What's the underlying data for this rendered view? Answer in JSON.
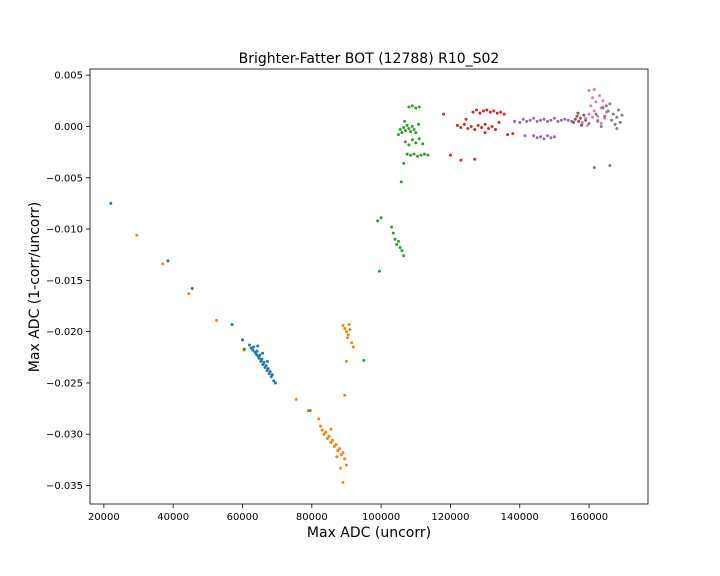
{
  "chart_data": {
    "type": "scatter",
    "title": "Brighter-Fatter BOT (12788) R10_S02",
    "xlabel": "Max ADC (uncorr)",
    "ylabel": "Max ADC (1-corr/uncorr)",
    "xlim": [
      16000,
      177000
    ],
    "ylim": [
      -0.0368,
      0.0056
    ],
    "xticks": [
      20000,
      40000,
      60000,
      80000,
      100000,
      120000,
      140000,
      160000
    ],
    "xtick_labels": [
      "20000",
      "40000",
      "60000",
      "80000",
      "100000",
      "120000",
      "140000",
      "160000"
    ],
    "yticks": [
      0.005,
      0.0,
      -0.005,
      -0.01,
      -0.015,
      -0.02,
      -0.025,
      -0.03,
      -0.035
    ],
    "ytick_labels": [
      "0.005",
      "0.000",
      "−0.005",
      "−0.010",
      "−0.015",
      "−0.020",
      "−0.025",
      "−0.030",
      "−0.035"
    ],
    "grid": false,
    "legend": "none",
    "series": [
      {
        "color": "#1f77b4",
        "points": [
          [
            22000,
            -0.0075
          ],
          [
            38500,
            -0.0131
          ],
          [
            45500,
            -0.0158
          ],
          [
            57000,
            -0.0193
          ],
          [
            60000,
            -0.0208
          ],
          [
            62000,
            -0.0213
          ],
          [
            62500,
            -0.0216
          ],
          [
            63000,
            -0.0218
          ],
          [
            63200,
            -0.0215
          ],
          [
            63600,
            -0.022
          ],
          [
            64000,
            -0.0222
          ],
          [
            64200,
            -0.0219
          ],
          [
            64500,
            -0.0224
          ],
          [
            64800,
            -0.0226
          ],
          [
            65000,
            -0.0223
          ],
          [
            65300,
            -0.0229
          ],
          [
            65600,
            -0.0227
          ],
          [
            65900,
            -0.0232
          ],
          [
            66200,
            -0.023
          ],
          [
            66500,
            -0.0235
          ],
          [
            66800,
            -0.0233
          ],
          [
            67100,
            -0.0238
          ],
          [
            67400,
            -0.0236
          ],
          [
            67700,
            -0.0241
          ],
          [
            68000,
            -0.0239
          ],
          [
            68300,
            -0.0244
          ],
          [
            68600,
            -0.0242
          ],
          [
            69000,
            -0.0248
          ],
          [
            69500,
            -0.025
          ],
          [
            64400,
            -0.0214
          ],
          [
            65800,
            -0.0221
          ],
          [
            67200,
            -0.0229
          ]
        ]
      },
      {
        "color": "#ff7f0e",
        "points": [
          [
            29500,
            -0.0106
          ],
          [
            37000,
            -0.0134
          ],
          [
            44500,
            -0.0163
          ],
          [
            52500,
            -0.0189
          ],
          [
            60500,
            -0.0218
          ],
          [
            75500,
            -0.0266
          ],
          [
            79000,
            -0.0277
          ],
          [
            82000,
            -0.0285
          ],
          [
            82500,
            -0.0292
          ],
          [
            83000,
            -0.0296
          ],
          [
            83500,
            -0.03
          ],
          [
            84000,
            -0.0298
          ],
          [
            84500,
            -0.0304
          ],
          [
            85000,
            -0.0302
          ],
          [
            85500,
            -0.0308
          ],
          [
            86000,
            -0.0306
          ],
          [
            86500,
            -0.0312
          ],
          [
            87000,
            -0.031
          ],
          [
            87500,
            -0.0316
          ],
          [
            88000,
            -0.0314
          ],
          [
            88500,
            -0.032
          ],
          [
            89000,
            -0.0318
          ],
          [
            89500,
            -0.0324
          ],
          [
            90000,
            -0.033
          ],
          [
            89000,
            -0.0347
          ],
          [
            89500,
            -0.0262
          ],
          [
            90000,
            -0.0229
          ],
          [
            89000,
            -0.0194
          ],
          [
            89500,
            -0.0197
          ],
          [
            90000,
            -0.02
          ],
          [
            90500,
            -0.0203
          ],
          [
            91000,
            -0.0198
          ],
          [
            90300,
            -0.0206
          ],
          [
            91500,
            -0.0211
          ],
          [
            92000,
            -0.0215
          ],
          [
            90800,
            -0.0193
          ],
          [
            85500,
            -0.0295
          ],
          [
            87200,
            -0.0322
          ],
          [
            88300,
            -0.0333
          ]
        ]
      },
      {
        "color": "#2ca02c",
        "points": [
          [
            60500,
            -0.0217
          ],
          [
            79500,
            -0.0277
          ],
          [
            95000,
            -0.0228
          ],
          [
            99000,
            -0.0092
          ],
          [
            100000,
            -0.0089
          ],
          [
            99500,
            -0.0141
          ],
          [
            103000,
            -0.0098
          ],
          [
            103500,
            -0.0104
          ],
          [
            104000,
            -0.011
          ],
          [
            104500,
            -0.0115
          ],
          [
            105000,
            -0.0112
          ],
          [
            105500,
            -0.0118
          ],
          [
            106000,
            -0.0121
          ],
          [
            106500,
            -0.0126
          ],
          [
            105800,
            -0.0054
          ],
          [
            106500,
            -0.0036
          ],
          [
            105000,
            -0.0008
          ],
          [
            105500,
            -0.0003
          ],
          [
            106000,
            -0.0006
          ],
          [
            106500,
            -0.0001
          ],
          [
            107000,
            -0.0004
          ],
          [
            107500,
            0.0001
          ],
          [
            108000,
            -0.0002
          ],
          [
            108500,
            -0.0005
          ],
          [
            109000,
            0.0
          ],
          [
            109500,
            -0.0003
          ],
          [
            110000,
            -0.0006
          ],
          [
            107000,
            -0.0015
          ],
          [
            108000,
            -0.0018
          ],
          [
            109000,
            -0.0013
          ],
          [
            110000,
            -0.0016
          ],
          [
            111000,
            -0.0012
          ],
          [
            112000,
            -0.0017
          ],
          [
            107500,
            -0.0027
          ],
          [
            108500,
            -0.0028
          ],
          [
            109500,
            -0.0027
          ],
          [
            110500,
            -0.0029
          ],
          [
            111500,
            -0.0028
          ],
          [
            112500,
            -0.0027
          ],
          [
            113500,
            -0.0028
          ],
          [
            108000,
            0.0019
          ],
          [
            109000,
            0.002
          ],
          [
            110000,
            0.0018
          ],
          [
            111000,
            0.0019
          ],
          [
            106800,
            0.0005
          ],
          [
            110800,
            0.0002
          ]
        ]
      },
      {
        "color": "#d62728",
        "points": [
          [
            118000,
            0.0012
          ],
          [
            120000,
            -0.0028
          ],
          [
            123000,
            -0.0033
          ],
          [
            127000,
            -0.0032
          ],
          [
            122000,
            0.0001
          ],
          [
            123000,
            -0.0001
          ],
          [
            124000,
            0.0002
          ],
          [
            125000,
            -0.0002
          ],
          [
            126000,
            0.0
          ],
          [
            127000,
            -0.0003
          ],
          [
            128000,
            0.0001
          ],
          [
            129000,
            -0.0001
          ],
          [
            130000,
            0.0002
          ],
          [
            131000,
            -0.0002
          ],
          [
            132000,
            0.0
          ],
          [
            133000,
            -0.0003
          ],
          [
            126500,
            0.0014
          ],
          [
            127500,
            0.0016
          ],
          [
            128500,
            0.0013
          ],
          [
            129500,
            0.0015
          ],
          [
            130500,
            0.0016
          ],
          [
            131500,
            0.0014
          ],
          [
            132500,
            0.0015
          ],
          [
            133500,
            0.0013
          ],
          [
            134500,
            0.0014
          ],
          [
            135500,
            0.0012
          ],
          [
            124500,
            0.0007
          ],
          [
            136500,
            -0.0008
          ],
          [
            138000,
            -0.0007
          ],
          [
            130000,
            -0.0006
          ],
          [
            134000,
            0.0004
          ]
        ]
      },
      {
        "color": "#9467bd",
        "points": [
          [
            138500,
            0.0005
          ],
          [
            140000,
            0.0004
          ],
          [
            141000,
            0.0007
          ],
          [
            142000,
            0.0005
          ],
          [
            143000,
            0.0006
          ],
          [
            144000,
            0.0008
          ],
          [
            145000,
            0.0005
          ],
          [
            146000,
            0.0006
          ],
          [
            147000,
            0.0007
          ],
          [
            148000,
            0.0005
          ],
          [
            149000,
            0.0006
          ],
          [
            150000,
            0.0008
          ],
          [
            151000,
            0.0005
          ],
          [
            152000,
            0.0006
          ],
          [
            153000,
            0.0007
          ],
          [
            154000,
            0.0006
          ],
          [
            155000,
            0.0005
          ],
          [
            144000,
            -0.0009
          ],
          [
            145000,
            -0.0011
          ],
          [
            146000,
            -0.001
          ],
          [
            147000,
            -0.0012
          ],
          [
            148000,
            -0.0009
          ],
          [
            149000,
            -0.0011
          ],
          [
            150000,
            -0.001
          ],
          [
            141500,
            -0.0009
          ]
        ]
      },
      {
        "color": "#8c564b",
        "points": [
          [
            155500,
            0.0004
          ],
          [
            156000,
            0.0007
          ],
          [
            156500,
            0.001
          ],
          [
            157000,
            0.0005
          ],
          [
            157500,
            0.0008
          ],
          [
            158000,
            0.0003
          ],
          [
            158500,
            0.0011
          ],
          [
            159000,
            0.0006
          ],
          [
            156800,
            0.0013
          ],
          [
            157800,
            0.0001
          ]
        ]
      },
      {
        "color": "#e377c2",
        "points": [
          [
            158000,
            0.0004
          ],
          [
            159000,
            0.0008
          ],
          [
            160000,
            0.0012
          ],
          [
            160500,
            0.002
          ],
          [
            161000,
            0.0028
          ],
          [
            161500,
            0.0015
          ],
          [
            162000,
            0.0024
          ],
          [
            162500,
            0.001
          ],
          [
            163000,
            0.003
          ],
          [
            163500,
            0.0018
          ],
          [
            164000,
            0.0025
          ],
          [
            164500,
            0.0008
          ],
          [
            165000,
            0.0014
          ],
          [
            160000,
            0.0035
          ],
          [
            161500,
            0.0036
          ],
          [
            162500,
            0.0006
          ],
          [
            163500,
            0.0003
          ],
          [
            159500,
            0.0001
          ],
          [
            164000,
            0.0019
          ],
          [
            161000,
            0.0009
          ]
        ]
      },
      {
        "color": "#7f7f7f",
        "points": [
          [
            160000,
            0.0003
          ],
          [
            161500,
            -0.004
          ],
          [
            162500,
            0.0005
          ],
          [
            163500,
            0.0
          ],
          [
            164500,
            0.001
          ],
          [
            165000,
            0.002
          ],
          [
            165500,
            0.0015
          ],
          [
            166000,
            -0.0038
          ],
          [
            166500,
            0.0006
          ],
          [
            167000,
            0.0012
          ],
          [
            167500,
            0.0002
          ],
          [
            168000,
            0.0009
          ],
          [
            168500,
            0.0016
          ],
          [
            169000,
            0.0004
          ],
          [
            169500,
            0.0011
          ],
          [
            166000,
            0.0022
          ],
          [
            168000,
            -0.0002
          ],
          [
            164000,
            0.0018
          ],
          [
            162000,
            0.0012
          ]
        ]
      }
    ]
  }
}
